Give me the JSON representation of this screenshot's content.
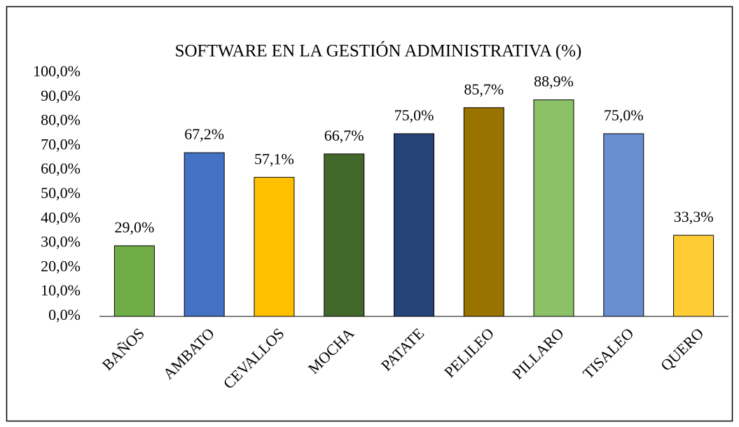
{
  "chart_data": {
    "type": "bar",
    "title": "SOFTWARE EN LA GESTIÓN ADMINISTRATIVA (%)",
    "categories": [
      "BAÑOS",
      "AMBATO",
      "CEVALLOS",
      "MOCHA",
      "PATATE",
      "PELILEO",
      "PILLARO",
      "TISALEO",
      "QUERO"
    ],
    "values": [
      29.0,
      67.2,
      57.1,
      66.7,
      75.0,
      85.7,
      88.9,
      75.0,
      33.3
    ],
    "value_labels": [
      "29,0%",
      "67,2%",
      "57,1%",
      "66,7%",
      "75,0%",
      "85,7%",
      "88,9%",
      "75,0%",
      "33,3%"
    ],
    "colors": [
      "#70ad47",
      "#4472c4",
      "#ffc000",
      "#43682b",
      "#264478",
      "#997300",
      "#8cc168",
      "#698ed0",
      "#ffcd33"
    ],
    "ylim": [
      0,
      100
    ],
    "yticks": [
      {
        "value": 0,
        "label": "0,0%"
      },
      {
        "value": 10,
        "label": "10,0%"
      },
      {
        "value": 20,
        "label": "20,0%"
      },
      {
        "value": 30,
        "label": "30,0%"
      },
      {
        "value": 40,
        "label": "40,0%"
      },
      {
        "value": 50,
        "label": "50,0%"
      },
      {
        "value": 60,
        "label": "60,0%"
      },
      {
        "value": 70,
        "label": "70,0%"
      },
      {
        "value": 80,
        "label": "80,0%"
      },
      {
        "value": 90,
        "label": "90,0%"
      },
      {
        "value": 100,
        "label": "100,0%"
      }
    ],
    "grid": false
  }
}
